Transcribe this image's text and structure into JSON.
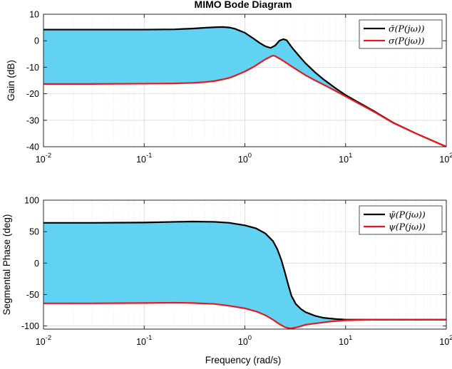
{
  "chart_data": [
    {
      "type": "line",
      "title": "MIMO Bode Diagram",
      "xlabel": "",
      "ylabel": "Gain (dB)",
      "xscale": "log",
      "xlim": [
        0.01,
        100
      ],
      "ylim": [
        -40,
        10
      ],
      "yticks": [
        10,
        0,
        -10,
        -20,
        -30,
        -40
      ],
      "xtick_labels": [
        {
          "base": "10",
          "exp": "-2"
        },
        {
          "base": "10",
          "exp": "-1"
        },
        {
          "base": "10",
          "exp": "0"
        },
        {
          "base": "10",
          "exp": "1"
        },
        {
          "base": "10",
          "exp": "2"
        }
      ],
      "grid": true,
      "fill_between_series": true,
      "fill_color": "#62d2f2",
      "legend_position": "top-right",
      "series": [
        {
          "name": "σ̄(P(jω))",
          "color": "#000000",
          "x": [
            0.01,
            0.03,
            0.1,
            0.2,
            0.3,
            0.4,
            0.5,
            0.6,
            0.7,
            0.8,
            1.0,
            1.2,
            1.4,
            1.6,
            1.8,
            2.0,
            2.2,
            2.4,
            2.6,
            2.8,
            3.0,
            3.5,
            4.0,
            5.0,
            6.0,
            8.0,
            10,
            20,
            30,
            50,
            100
          ],
          "values": [
            4.2,
            4.2,
            4.2,
            4.3,
            4.6,
            4.9,
            5.1,
            5.2,
            5.0,
            4.5,
            3.0,
            1.0,
            -0.8,
            -2.1,
            -2.7,
            -1.8,
            0.0,
            0.6,
            0.2,
            -1.5,
            -3.0,
            -6.0,
            -8.5,
            -12.0,
            -14.5,
            -18.0,
            -20.5,
            -27.0,
            -31.0,
            -35.0,
            -40.0
          ]
        },
        {
          "name": "σ(P(jω))",
          "color": "#e8191e",
          "x": [
            0.01,
            0.03,
            0.1,
            0.2,
            0.3,
            0.4,
            0.5,
            0.6,
            0.7,
            0.8,
            1.0,
            1.2,
            1.4,
            1.6,
            1.8,
            1.9,
            2.0,
            2.2,
            2.5,
            3.0,
            4.0,
            5.0,
            6.0,
            8.0,
            10,
            20,
            30,
            50,
            100
          ],
          "values": [
            -16.3,
            -16.3,
            -16.2,
            -16.1,
            -15.9,
            -15.6,
            -15.2,
            -14.6,
            -14.0,
            -13.2,
            -11.6,
            -10.0,
            -8.4,
            -7.0,
            -6.0,
            -5.6,
            -5.8,
            -6.7,
            -8.0,
            -10.0,
            -13.0,
            -15.0,
            -16.5,
            -19.0,
            -21.0,
            -27.2,
            -31.1,
            -35.0,
            -40.0
          ]
        }
      ]
    },
    {
      "type": "line",
      "title": "",
      "xlabel": "Frequency (rad/s)",
      "ylabel": "Segmental Phase (deg)",
      "xscale": "log",
      "xlim": [
        0.01,
        100
      ],
      "ylim": [
        -105,
        100
      ],
      "yticks": [
        100,
        50,
        0,
        -50,
        -100
      ],
      "xtick_labels": [
        {
          "base": "10",
          "exp": "-2"
        },
        {
          "base": "10",
          "exp": "-1"
        },
        {
          "base": "10",
          "exp": "0"
        },
        {
          "base": "10",
          "exp": "1"
        },
        {
          "base": "10",
          "exp": "2"
        }
      ],
      "grid": true,
      "fill_between_series": true,
      "fill_color": "#62d2f2",
      "legend_position": "top-right",
      "series": [
        {
          "name": "ψ̄(P(jω))",
          "color": "#000000",
          "x": [
            0.01,
            0.03,
            0.1,
            0.2,
            0.3,
            0.5,
            0.7,
            1.0,
            1.3,
            1.6,
            1.9,
            2.1,
            2.3,
            2.5,
            2.7,
            2.9,
            3.2,
            3.6,
            4.0,
            5.0,
            6.0,
            8.0,
            10,
            20,
            50,
            100
          ],
          "values": [
            64,
            64,
            64.5,
            65.5,
            66,
            65.5,
            64,
            60,
            55,
            47,
            35,
            22,
            5,
            -15,
            -35,
            -52,
            -65,
            -73,
            -78,
            -84,
            -87,
            -89,
            -90,
            -90,
            -90,
            -90
          ]
        },
        {
          "name": "ψ(P(jω))",
          "color": "#e8191e",
          "x": [
            0.01,
            0.03,
            0.1,
            0.2,
            0.3,
            0.5,
            0.7,
            1.0,
            1.3,
            1.6,
            1.9,
            2.2,
            2.5,
            2.8,
            3.1,
            3.5,
            4.0,
            5.0,
            7.0,
            10,
            20,
            50,
            100
          ],
          "values": [
            -64,
            -64,
            -63.5,
            -63,
            -63.5,
            -65,
            -68,
            -72,
            -77,
            -83,
            -90,
            -97,
            -102,
            -104,
            -103,
            -101,
            -98,
            -96,
            -93,
            -91,
            -90,
            -90,
            -90
          ]
        }
      ]
    }
  ]
}
